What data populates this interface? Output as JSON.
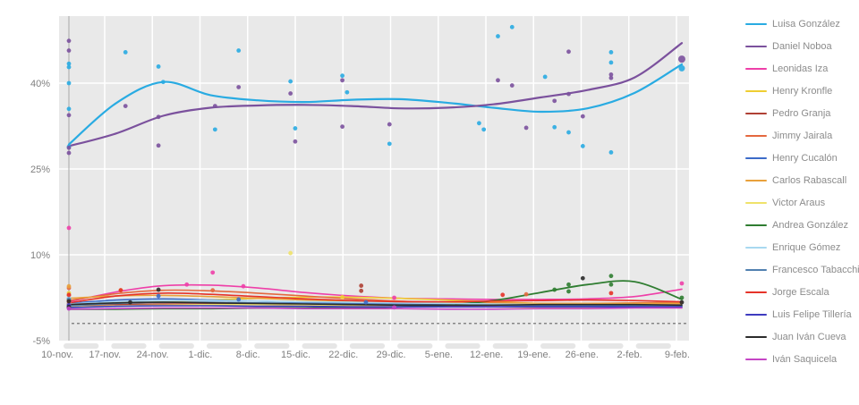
{
  "chart_data": {
    "type": "scatter",
    "title": "",
    "subtitle": "",
    "xlabel": "",
    "ylabel": "",
    "grid": true,
    "legend_position": "right",
    "plot_bg_color": "#e9e9e9",
    "grid_color": "#ffffff",
    "axis_text_color": "#7f7f7f",
    "legend_text_color": "#8c8c8c",
    "x_tick_labels": [
      "10-nov.",
      "17-nov.",
      "24-nov.",
      "1-dic.",
      "8-dic.",
      "15-dic.",
      "22-dic.",
      "29-dic.",
      "5-ene.",
      "12-ene.",
      "19-ene.",
      "26-ene.",
      "2-feb.",
      "9-feb."
    ],
    "y_tick_labels": [
      "40%",
      "25%",
      "10%",
      "-5%"
    ],
    "y_tick_values": [
      40,
      25,
      10,
      -5
    ],
    "ylim": [
      -5,
      51.7
    ],
    "reference_line": {
      "y": -2,
      "style": "dashed",
      "color": "#666666"
    },
    "series": [
      {
        "name": "Luisa González",
        "color": "#29ABE2",
        "width": 2.2,
        "trend": [
          29.3,
          36.5,
          40.2,
          37.9,
          37.0,
          36.7,
          37.1,
          37.2,
          36.6,
          35.7,
          35.0,
          35.6,
          38.3,
          43.3
        ],
        "points": [
          [
            0,
            43.4
          ],
          [
            0,
            42.8
          ],
          [
            0,
            40.0
          ],
          [
            0,
            35.5
          ],
          [
            0,
            28.9
          ],
          [
            1.2,
            45.4
          ],
          [
            1.9,
            42.9
          ],
          [
            2.0,
            40.2
          ],
          [
            3.1,
            31.9
          ],
          [
            3.6,
            45.7
          ],
          [
            4.7,
            40.3
          ],
          [
            4.8,
            32.1
          ],
          [
            5.8,
            41.3
          ],
          [
            5.9,
            38.4
          ],
          [
            6.8,
            29.4
          ],
          [
            8.7,
            33.0
          ],
          [
            8.8,
            31.9
          ],
          [
            9.1,
            48.2
          ],
          [
            9.4,
            49.8
          ],
          [
            10.1,
            41.1
          ],
          [
            10.3,
            32.3
          ],
          [
            10.6,
            31.4
          ],
          [
            10.9,
            29.0
          ],
          [
            11.5,
            45.4
          ],
          [
            11.5,
            43.6
          ],
          [
            11.5,
            27.9
          ],
          [
            13,
            42.6,
            3.5
          ]
        ]
      },
      {
        "name": "Daniel Noboa",
        "color": "#7B519D",
        "width": 2.2,
        "trend": [
          29.0,
          31.2,
          34.3,
          35.7,
          36.1,
          36.2,
          36.0,
          35.6,
          35.7,
          36.3,
          37.5,
          38.8,
          41.0,
          47.0
        ],
        "points": [
          [
            0,
            47.4
          ],
          [
            0,
            45.7
          ],
          [
            0,
            34.4
          ],
          [
            0,
            28.7
          ],
          [
            0,
            27.8
          ],
          [
            1.2,
            36.0
          ],
          [
            1.9,
            34.1
          ],
          [
            1.9,
            29.1
          ],
          [
            3.1,
            36.0
          ],
          [
            3.6,
            39.3
          ],
          [
            4.7,
            38.2
          ],
          [
            4.8,
            29.8
          ],
          [
            5.8,
            40.5
          ],
          [
            5.8,
            32.4
          ],
          [
            6.8,
            32.8
          ],
          [
            9.1,
            40.5
          ],
          [
            9.4,
            39.6
          ],
          [
            9.7,
            32.2
          ],
          [
            10.3,
            36.9
          ],
          [
            10.6,
            45.5
          ],
          [
            10.6,
            38.1
          ],
          [
            10.9,
            34.2
          ],
          [
            11.5,
            41.5
          ],
          [
            11.5,
            40.9
          ],
          [
            13,
            44.2,
            4
          ]
        ]
      },
      {
        "name": "Leonidas Iza",
        "color": "#EE3FA8",
        "width": 1.6,
        "trend": [
          1.8,
          3.5,
          4.6,
          4.7,
          4.2,
          3.4,
          2.8,
          2.4,
          2.3,
          2.2,
          2.2,
          2.3,
          2.7,
          4.0
        ],
        "points": [
          [
            0,
            14.7
          ],
          [
            0,
            2.0
          ],
          [
            2.5,
            4.8
          ],
          [
            3.05,
            6.9
          ],
          [
            3.7,
            4.5
          ],
          [
            6.9,
            2.5
          ],
          [
            13,
            5.0
          ]
        ]
      },
      {
        "name": "Henry Kronfle",
        "color": "#EFCE32",
        "width": 1.6,
        "trend": [
          1.2,
          1.5,
          1.8,
          2.1,
          2.4,
          2.6,
          2.6,
          2.4,
          2.1,
          1.8,
          1.5,
          1.3,
          1.2,
          1.1
        ],
        "points": [
          [
            0,
            3.3
          ],
          [
            0,
            1.4
          ],
          [
            5.8,
            2.6
          ]
        ]
      },
      {
        "name": "Pedro Granja",
        "color": "#AF4034",
        "width": 1.6,
        "trend": [
          1.1,
          1.3,
          1.4,
          1.4,
          1.3,
          1.2,
          1.2,
          1.1,
          1.1,
          1.2,
          1.3,
          1.4,
          1.5,
          1.5
        ],
        "points": [
          [
            0,
            1.5
          ],
          [
            0,
            0.8
          ],
          [
            6.2,
            4.6
          ],
          [
            6.2,
            3.7
          ]
        ]
      },
      {
        "name": "Jimmy Jairala",
        "color": "#E4683F",
        "width": 1.6,
        "trend": [
          2.0,
          3.2,
          3.8,
          3.7,
          3.3,
          2.8,
          2.3,
          1.9,
          1.7,
          1.6,
          1.5,
          1.5,
          1.6,
          1.7
        ],
        "points": [
          [
            0,
            4.2
          ],
          [
            0,
            2.9
          ],
          [
            3.05,
            3.8
          ],
          [
            9.7,
            3.1
          ]
        ]
      },
      {
        "name": "Henry Cucalón",
        "color": "#3C6BC8",
        "width": 1.6,
        "trend": [
          1.5,
          2.1,
          2.3,
          2.1,
          1.9,
          1.7,
          1.5,
          1.4,
          1.3,
          1.2,
          1.2,
          1.1,
          1.1,
          1.1
        ],
        "points": [
          [
            0,
            2.3
          ],
          [
            0,
            1.0
          ],
          [
            1.9,
            2.8
          ],
          [
            3.6,
            2.2
          ],
          [
            6.3,
            1.7
          ]
        ]
      },
      {
        "name": "Carlos Rabascall",
        "color": "#E9A13B",
        "width": 1.6,
        "trend": [
          2.4,
          2.8,
          2.9,
          2.7,
          2.4,
          2.1,
          1.9,
          1.7,
          1.6,
          1.5,
          1.5,
          1.5,
          1.5,
          1.5
        ],
        "points": [
          [
            0,
            4.5
          ],
          [
            0,
            2.1
          ],
          [
            1.1,
            3.8
          ]
        ]
      },
      {
        "name": "Victor Araus",
        "color": "#EFE26A",
        "width": 1.6,
        "trend": [
          0.9,
          1.1,
          1.2,
          1.3,
          1.3,
          1.2,
          1.1,
          1.0,
          0.9,
          0.9,
          0.8,
          0.8,
          0.8,
          0.8
        ],
        "points": [
          [
            0,
            0.9
          ],
          [
            4.7,
            10.3
          ]
        ]
      },
      {
        "name": "Andrea González",
        "color": "#2F7D31",
        "width": 1.8,
        "trend": [
          0.5,
          0.5,
          0.6,
          0.6,
          0.7,
          0.7,
          0.8,
          0.9,
          1.2,
          2.0,
          3.4,
          4.8,
          5.3,
          2.2
        ],
        "points": [
          [
            10.3,
            3.9
          ],
          [
            10.6,
            4.8
          ],
          [
            10.6,
            3.6
          ],
          [
            11.5,
            6.3
          ],
          [
            11.5,
            4.8
          ],
          [
            13,
            2.5
          ]
        ]
      },
      {
        "name": "Enrique Gómez",
        "color": "#A8D8F0",
        "width": 1.6,
        "trend": [
          1.4,
          1.8,
          2.0,
          2.0,
          1.9,
          1.8,
          1.7,
          1.6,
          1.5,
          1.4,
          1.3,
          1.3,
          1.2,
          1.2
        ],
        "points": [
          [
            0,
            2.5
          ],
          [
            0,
            1.6
          ]
        ]
      },
      {
        "name": "Francesco Tabacchi",
        "color": "#5080B0",
        "width": 1.6,
        "trend": [
          1.1,
          1.5,
          1.7,
          1.7,
          1.6,
          1.5,
          1.4,
          1.3,
          1.2,
          1.2,
          1.1,
          1.1,
          1.1,
          1.0
        ],
        "points": [
          [
            0,
            2.2
          ],
          [
            0,
            1.1
          ]
        ]
      },
      {
        "name": "Jorge Escala",
        "color": "#E63329",
        "width": 1.6,
        "trend": [
          1.6,
          2.8,
          3.3,
          3.1,
          2.7,
          2.3,
          2.0,
          1.8,
          1.8,
          1.9,
          2.0,
          2.1,
          2.0,
          1.8
        ],
        "points": [
          [
            0,
            3.0
          ],
          [
            0,
            1.8
          ],
          [
            1.1,
            3.8
          ],
          [
            9.2,
            3.0
          ],
          [
            11.5,
            3.3
          ]
        ]
      },
      {
        "name": "Luis Felipe Tillería",
        "color": "#3E3BBF",
        "width": 1.6,
        "trend": [
          0.8,
          1.0,
          1.1,
          1.1,
          1.0,
          1.0,
          0.9,
          0.9,
          0.9,
          0.9,
          0.9,
          0.9,
          0.9,
          0.9
        ],
        "points": [
          [
            0,
            1.2
          ],
          [
            0,
            0.7
          ]
        ]
      },
      {
        "name": "Juan Iván Cueva",
        "color": "#2B2B2B",
        "width": 1.6,
        "trend": [
          1.3,
          1.6,
          1.7,
          1.6,
          1.5,
          1.4,
          1.3,
          1.2,
          1.2,
          1.2,
          1.3,
          1.3,
          1.3,
          1.2
        ],
        "points": [
          [
            0,
            1.9
          ],
          [
            0,
            0.9
          ],
          [
            1.3,
            1.7
          ],
          [
            1.9,
            3.9
          ],
          [
            10.9,
            5.9
          ],
          [
            13,
            1.7
          ]
        ]
      },
      {
        "name": "Iván Saquicela",
        "color": "#C545C5",
        "width": 1.6,
        "trend": [
          0.5,
          0.6,
          0.7,
          0.7,
          0.7,
          0.6,
          0.6,
          0.6,
          0.5,
          0.5,
          0.6,
          0.6,
          0.7,
          0.7
        ],
        "points": [
          [
            0,
            0.6
          ],
          [
            6.9,
            0.8
          ]
        ]
      }
    ]
  }
}
